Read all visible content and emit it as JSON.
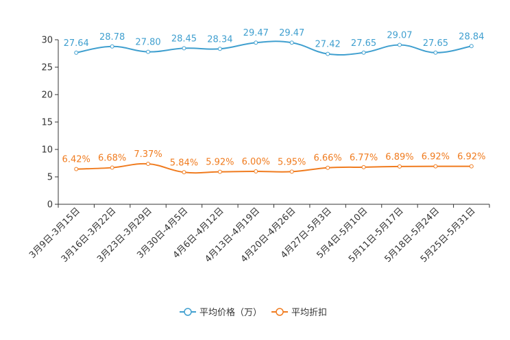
{
  "chart_data": {
    "type": "line",
    "title": "",
    "xlabel": "",
    "ylabel": "",
    "ylim": [
      0,
      30
    ],
    "yticks": [
      0,
      5,
      10,
      15,
      20,
      25,
      30
    ],
    "grid": false,
    "legend_position": "bottom-center",
    "categories": [
      "3月9日-3月15日",
      "3月16日-3月22日",
      "3月23日-3月29日",
      "3月30日-4月5日",
      "4月6日-4月12日",
      "4月13日-4月19日",
      "4月20日-4月26日",
      "4月27日-5月3日",
      "5月4日-5月10日",
      "5月11日-5月17日",
      "5月18日-5月24日",
      "5月25日-5月31日"
    ],
    "series": [
      {
        "name": "平均价格（万）",
        "color": "#3f9fcf",
        "values": [
          27.64,
          28.78,
          27.8,
          28.45,
          28.34,
          29.47,
          29.47,
          27.42,
          27.65,
          29.07,
          27.65,
          28.84
        ],
        "labels": [
          "27.64",
          "28.78",
          "27.80",
          "28.45",
          "28.34",
          "29.47",
          "29.47",
          "27.42",
          "27.65",
          "29.07",
          "27.65",
          "28.84"
        ]
      },
      {
        "name": "平均折扣",
        "color": "#f07b1e",
        "values": [
          6.42,
          6.68,
          7.37,
          5.84,
          5.92,
          6.0,
          5.95,
          6.66,
          6.77,
          6.89,
          6.92,
          6.92
        ],
        "labels": [
          "6.42%",
          "6.68%",
          "7.37%",
          "5.84%",
          "5.92%",
          "6.00%",
          "5.95%",
          "6.66%",
          "6.77%",
          "6.89%",
          "6.92%",
          "6.92%"
        ]
      }
    ]
  }
}
